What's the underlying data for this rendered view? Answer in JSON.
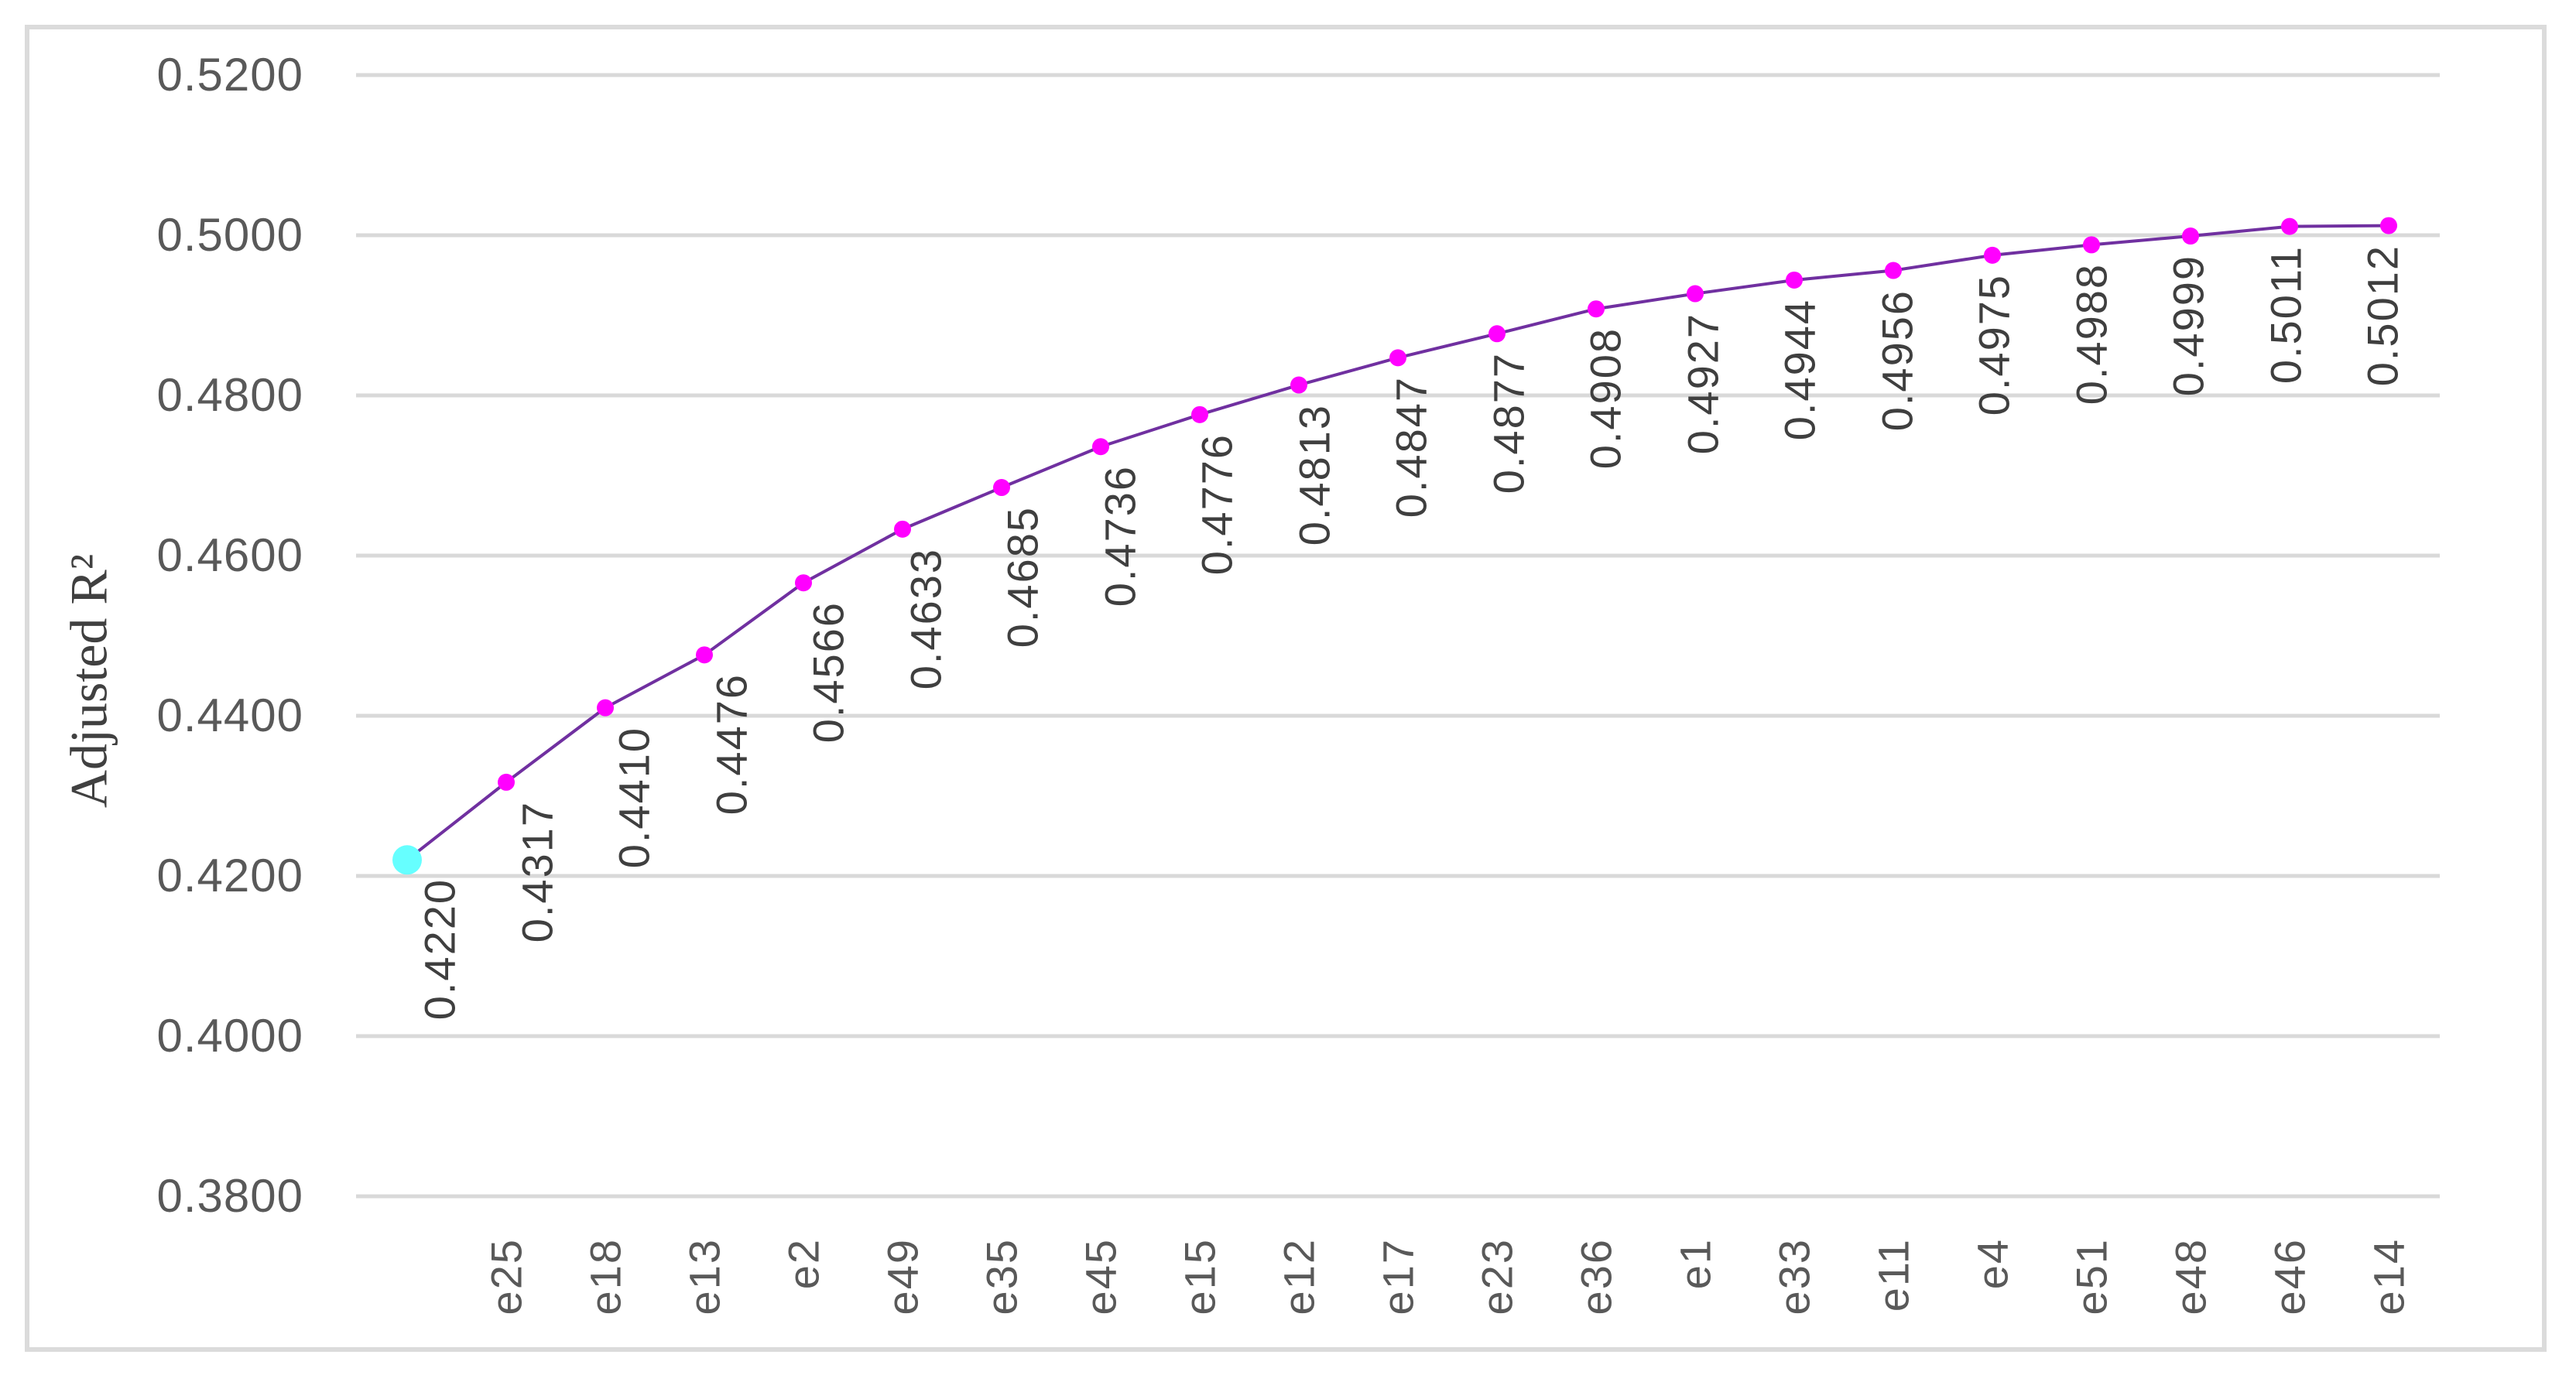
{
  "chart_data": {
    "type": "line",
    "title": "",
    "xlabel": "",
    "ylabel": "Adjusted R²",
    "categories": [
      "",
      "e25",
      "e18",
      "e13",
      "e2",
      "e49",
      "e35",
      "e45",
      "e15",
      "e12",
      "e17",
      "e23",
      "e36",
      "e1",
      "e33",
      "e11",
      "e4",
      "e51",
      "e48",
      "e46",
      "e14"
    ],
    "values": [
      0.422,
      0.4317,
      0.441,
      0.4476,
      0.4566,
      0.4633,
      0.4685,
      0.4736,
      0.4776,
      0.4813,
      0.4847,
      0.4877,
      0.4908,
      0.4927,
      0.4944,
      0.4956,
      0.4975,
      0.4988,
      0.4999,
      0.5011,
      0.5012
    ],
    "value_labels": [
      "0.4220",
      "0.4317",
      "0.4410",
      "0.4476",
      "0.4566",
      "0.4633",
      "0.4685",
      "0.4736",
      "0.4776",
      "0.4813",
      "0.4847",
      "0.4877",
      "0.4908",
      "0.4927",
      "0.4944",
      "0.4956",
      "0.4975",
      "0.4988",
      "0.4999",
      "0.5011",
      "0.5012"
    ],
    "y_ticks": [
      "0.3800",
      "0.4000",
      "0.4200",
      "0.4400",
      "0.4600",
      "0.4800",
      "0.5000",
      "0.5200"
    ],
    "y_tick_values": [
      0.38,
      0.4,
      0.42,
      0.44,
      0.46,
      0.48,
      0.5,
      0.52
    ],
    "ylim": [
      0.38,
      0.52
    ],
    "grid": true,
    "legend": "none",
    "colors": {
      "line": "#7030A0",
      "marker": "#FF00FF",
      "first_marker": "#66FFFF",
      "gridline": "#D9D9D9",
      "frame_border": "#DBDBDB",
      "tick_text": "#595959",
      "data_label_text": "#3F3F3F",
      "axis_title_text": "#404040"
    }
  }
}
